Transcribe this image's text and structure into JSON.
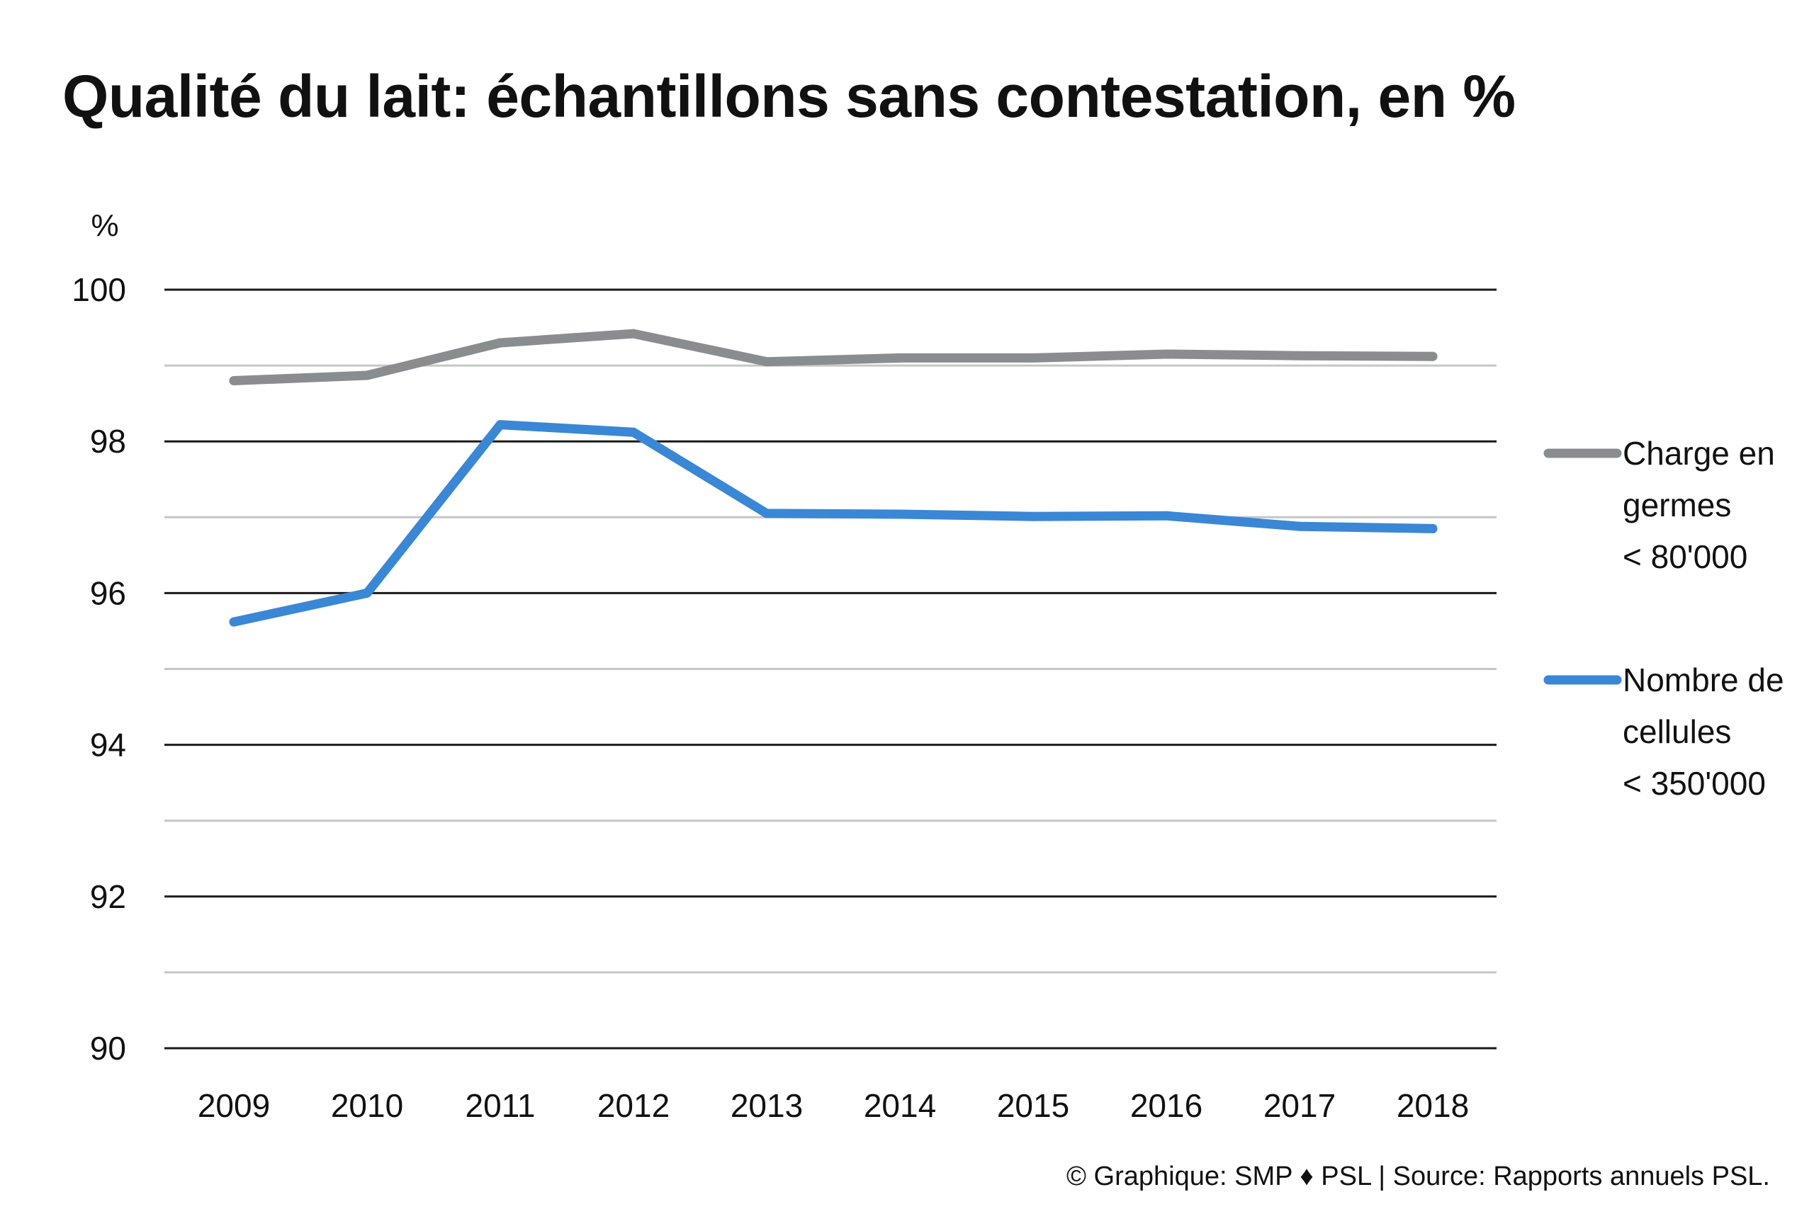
{
  "chart_data": {
    "type": "line",
    "title": "Qualité du lait: échantillons sans contestation, en %",
    "ylabel": "%",
    "xlabel": "",
    "x": [
      "2009",
      "2010",
      "2011",
      "2012",
      "2013",
      "2014",
      "2015",
      "2016",
      "2017",
      "2018"
    ],
    "ylim": [
      90,
      100
    ],
    "yticks": [
      "100",
      "98",
      "96",
      "94",
      "92",
      "90"
    ],
    "grid": true,
    "legend_position": "right",
    "series": [
      {
        "name_lines": [
          "Charge en",
          "germes",
          "< 80'000"
        ],
        "color": "#8a8d90",
        "values": [
          98.8,
          98.87,
          99.3,
          99.42,
          99.05,
          99.1,
          99.1,
          99.15,
          99.13,
          99.12
        ]
      },
      {
        "name_lines": [
          "Nombre de",
          "cellules",
          "< 350'000"
        ],
        "color": "#3a87d6",
        "values": [
          95.62,
          96.0,
          98.22,
          98.12,
          97.05,
          97.04,
          97.01,
          97.02,
          96.88,
          96.85
        ]
      }
    ],
    "source": "© Graphique: SMP ♦ PSL | Source: Rapports annuels PSL."
  }
}
